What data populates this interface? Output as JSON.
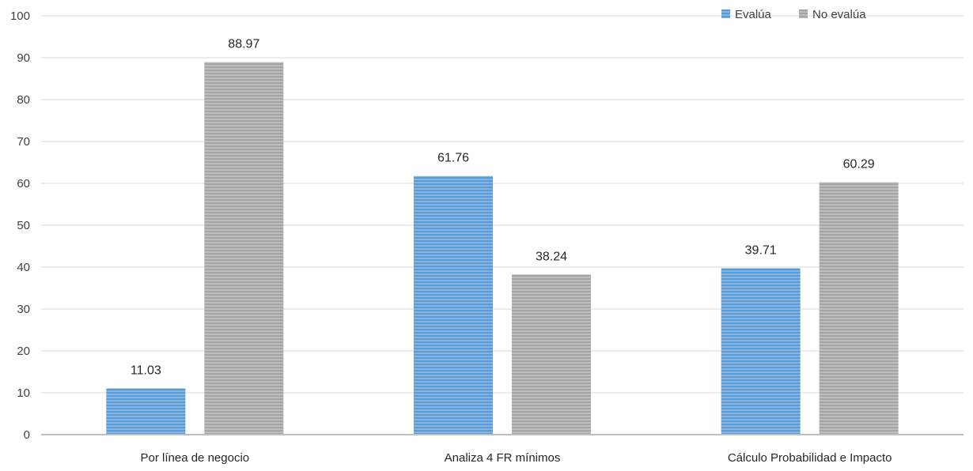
{
  "chart_data": {
    "type": "bar",
    "title": "",
    "xlabel": "",
    "ylabel": "",
    "categories": [
      "Por línea de negocio",
      "Analiza 4 FR mínimos",
      "Cálculo Probabilidad e Impacto"
    ],
    "series": [
      {
        "name": "Evalúa",
        "values": [
          11.03,
          61.76,
          39.71
        ],
        "color": "#5b9bd5"
      },
      {
        "name": "No evalúa",
        "values": [
          88.97,
          38.24,
          60.29
        ],
        "color": "#a5a5a5"
      }
    ],
    "ylim": [
      0,
      100
    ],
    "yticks": [
      0,
      10,
      20,
      30,
      40,
      50,
      60,
      70,
      80,
      90,
      100
    ],
    "ytick_labels": [
      "0",
      "10",
      "20",
      "30",
      "40",
      "50",
      "60",
      "70",
      "80",
      "90",
      "100"
    ],
    "data_labels": [
      "11.03",
      "88.97",
      "61.76",
      "38.24",
      "39.71",
      "60.29"
    ],
    "grid": true,
    "legend_position": "top-right",
    "colors": {
      "grid": "#d9d9d9",
      "axis": "#bfbfbf",
      "stripe": "#ffffff"
    }
  }
}
